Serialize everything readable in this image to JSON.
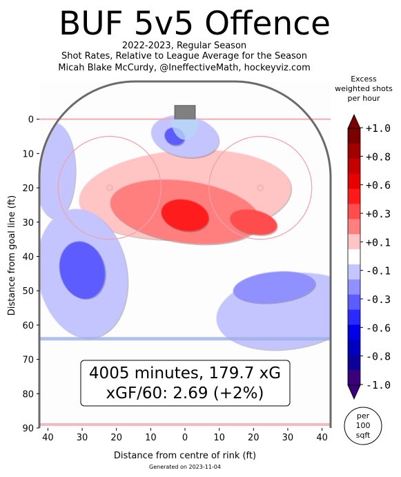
{
  "header": {
    "title": "BUF 5v5 Offence",
    "subtitle_lines": [
      "2022-2023, Regular Season",
      "Shot Rates, Relative to League Average for the Season",
      "Micah Blake McCurdy, @IneffectiveMath, hockeyviz.com"
    ]
  },
  "summary": {
    "line1": "4005 minutes, 179.7 xG",
    "line2": "xGF/60: 2.69 (+2%)"
  },
  "footer": {
    "generated": "Generated on 2023-11-04"
  },
  "scale_note": {
    "lines": [
      "per",
      "100",
      "sqft"
    ]
  },
  "chart_data": {
    "type": "heatmap",
    "title": "BUF 5v5 Offence",
    "xlabel": "Distance from centre of rink (ft)",
    "ylabel": "Distance from goal line (ft)",
    "xlim": [
      -42.5,
      42.5
    ],
    "ylim": [
      90,
      -11
    ],
    "x_ticks": [
      40,
      30,
      20,
      10,
      0,
      10,
      20,
      30,
      40
    ],
    "x_tick_values": [
      -40,
      -30,
      -20,
      -10,
      0,
      10,
      20,
      30,
      40
    ],
    "y_ticks": [
      0,
      10,
      20,
      30,
      40,
      50,
      60,
      70,
      80,
      90
    ],
    "colorbar": {
      "title_lines": [
        "Excess",
        "weighted shots",
        "per hour"
      ],
      "tick_labels": [
        "+1.0",
        "+0.8",
        "+0.6",
        "+0.3",
        "+0.1",
        "-0.1",
        "-0.3",
        "-0.6",
        "-0.8",
        "-1.0"
      ],
      "levels": [
        {
          "value": 0.95,
          "color": "#7a0000"
        },
        {
          "value": 0.85,
          "color": "#a00000"
        },
        {
          "value": 0.75,
          "color": "#c40000"
        },
        {
          "value": 0.65,
          "color": "#e60000"
        },
        {
          "value": 0.55,
          "color": "#ff1a1a"
        },
        {
          "value": 0.4,
          "color": "#ff4d4d"
        },
        {
          "value": 0.25,
          "color": "#ff7f7f"
        },
        {
          "value": 0.12,
          "color": "#ffc4c4"
        },
        {
          "value": 0.0,
          "color": "#ffffff"
        },
        {
          "value": -0.12,
          "color": "#c4c4ff"
        },
        {
          "value": -0.25,
          "color": "#9090ff"
        },
        {
          "value": -0.4,
          "color": "#5c5cff"
        },
        {
          "value": -0.55,
          "color": "#2a2aff"
        },
        {
          "value": -0.65,
          "color": "#0000e6"
        },
        {
          "value": -0.75,
          "color": "#0000c0"
        },
        {
          "value": -0.85,
          "color": "#0b0099"
        },
        {
          "value": -0.95,
          "color": "#3a007a"
        }
      ]
    },
    "regions": [
      {
        "name": "slot-high-danger",
        "x": 0,
        "y": 28,
        "value": 0.55
      },
      {
        "name": "slot-outer",
        "x": 0,
        "y": 27,
        "value": 0.25
      },
      {
        "name": "right-circle-inner",
        "x": 20,
        "y": 30,
        "value": 0.4
      },
      {
        "name": "high-slot-band",
        "x": 0,
        "y": 22,
        "value": 0.12
      },
      {
        "name": "left-point-lane",
        "x": -30,
        "y": 44,
        "value": -0.4
      },
      {
        "name": "left-point-outer",
        "x": -30,
        "y": 45,
        "value": -0.12
      },
      {
        "name": "right-point",
        "x": 26,
        "y": 49,
        "value": -0.25
      },
      {
        "name": "right-point-outer",
        "x": 30,
        "y": 56,
        "value": -0.12
      },
      {
        "name": "crease-left",
        "x": -3,
        "y": 5,
        "value": -0.4
      },
      {
        "name": "crease-outer",
        "x": 0,
        "y": 5,
        "value": -0.12
      },
      {
        "name": "left-wall",
        "x": -38,
        "y": 15,
        "value": -0.12
      }
    ]
  }
}
